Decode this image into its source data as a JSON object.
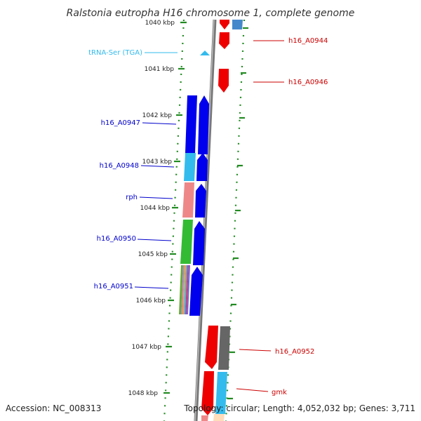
{
  "title": "Ralstonia eutropha H16 chromosome 1, complete genome",
  "footer": {
    "accession": "Accession: NC_008313",
    "summary": "Topology: circular; Length: 4,052,032 bp; Genes: 3,711"
  },
  "kbp_labels": [
    "1040 kbp",
    "1041 kbp",
    "1042 kbp",
    "1043 kbp",
    "1044 kbp",
    "1045 kbp",
    "1046 kbp",
    "1047 kbp",
    "1048 kbp"
  ],
  "genes_left": [
    {
      "label": "tRNA-Ser (TGA)",
      "color": "#33bbee"
    },
    {
      "label": "h16_A0947",
      "color": "#0000cc"
    },
    {
      "label": "h16_A0948",
      "color": "#0000cc"
    },
    {
      "label": "rph",
      "color": "#0000cc"
    },
    {
      "label": "h16_A0950",
      "color": "#0000cc"
    },
    {
      "label": "h16_A0951",
      "color": "#0000cc"
    }
  ],
  "genes_right": [
    {
      "label": "h16_A0944",
      "color": "#cc0000"
    },
    {
      "label": "h16_A0946",
      "color": "#cc0000"
    },
    {
      "label": "h16_A0952",
      "color": "#cc0000"
    },
    {
      "label": "gmk",
      "color": "#cc0000"
    }
  ],
  "colors": {
    "forward_cds": "#0000ee",
    "reverse_cds": "#ee0000",
    "backbone": "#888888",
    "tick": "#228b22"
  }
}
